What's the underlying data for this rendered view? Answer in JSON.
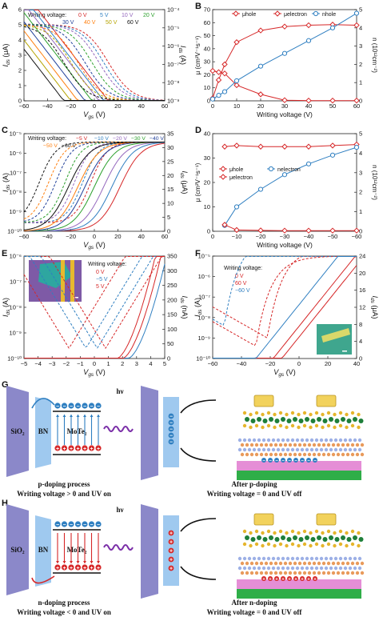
{
  "colors": {
    "red": "#d62728",
    "blue": "#2f7fc1",
    "black": "#111111",
    "sio2": "#8b88c9",
    "bn": "#9fc9ef",
    "gold": "#f2d25c",
    "green": "#2fae48",
    "pink": "#e58ed6",
    "electron": "#2f7fc1",
    "hole": "#d62728",
    "hv": "#7b2fa8"
  },
  "chart_data": [
    {
      "panel": "A",
      "type": "line",
      "xlabel": "Vgs (V)",
      "ylabel_left": "Ids (μA)",
      "ylabel_right": "Ids (A)",
      "xlim": [
        -60,
        60
      ],
      "ylim_left": [
        0,
        6
      ],
      "ylim_right_log": [
        -9,
        -4
      ],
      "x_ticks": [
        "−60",
        "−40",
        "−20",
        "0",
        "20",
        "40",
        "60"
      ],
      "y_ticks_left": [
        "0",
        "1",
        "2",
        "3",
        "4",
        "5",
        "6"
      ],
      "y_ticks_right": [
        "10⁻⁹",
        "10⁻⁸",
        "10⁻⁷",
        "10⁻⁶",
        "10⁻⁵",
        "10⁻⁴"
      ],
      "legend_title": "Writing voltage:",
      "legend": [
        {
          "label": "0 V",
          "color": "#d62728"
        },
        {
          "label": "5 V",
          "color": "#2f7fc1"
        },
        {
          "label": "10 V",
          "color": "#9467bd"
        },
        {
          "label": "20 V",
          "color": "#2ca02c"
        },
        {
          "label": "30 V",
          "color": "#1f3f99"
        },
        {
          "label": "40 V",
          "color": "#ff7f0e"
        },
        {
          "label": "50 V",
          "color": "#b5a300"
        },
        {
          "label": "60 V",
          "color": "#111111"
        }
      ],
      "linear_v0": [
        12,
        8,
        4,
        -2,
        -8,
        -14,
        -20,
        -26
      ]
    },
    {
      "panel": "B",
      "type": "line",
      "xlabel": "Writing voltage (V)",
      "ylabel_left": "μ (cm²V⁻¹s⁻¹)",
      "ylabel_right": "n (10¹²cm⁻²)",
      "xlim": [
        0,
        60
      ],
      "ylim_left": [
        0,
        70
      ],
      "ylim_right": [
        0,
        5
      ],
      "x_ticks": [
        "0",
        "10",
        "20",
        "30",
        "40",
        "50",
        "60"
      ],
      "y_ticks_left": [
        "0",
        "10",
        "20",
        "30",
        "40",
        "50",
        "60",
        "70"
      ],
      "y_ticks_right": [
        "0",
        "1",
        "2",
        "3",
        "4",
        "5"
      ],
      "x": [
        0,
        2.5,
        5,
        10,
        20,
        30,
        40,
        50,
        60
      ],
      "series": [
        {
          "name": "μhole",
          "axis": "left",
          "color": "#d62728",
          "values": [
            2,
            16,
            28,
            45,
            54,
            57,
            58,
            58.5,
            58
          ]
        },
        {
          "name": "μelectron",
          "axis": "left",
          "color": "#d62728",
          "values": [
            23,
            22,
            21,
            12,
            5,
            0.5,
            0.2,
            0.2,
            0.2
          ]
        },
        {
          "name": "nhole",
          "axis": "right",
          "color": "#2f7fc1",
          "values": [
            0.1,
            0.3,
            0.5,
            1.1,
            1.9,
            2.6,
            3.3,
            4.0,
            4.8
          ]
        }
      ],
      "legend": [
        "μhole",
        "μelectron",
        "nhole"
      ]
    },
    {
      "panel": "C",
      "type": "line",
      "xlabel": "Vgs (V)",
      "ylabel_left": "Ids (A)",
      "ylabel_right": "Ids (μA)",
      "xlim": [
        -60,
        60
      ],
      "ylim_right": [
        0,
        35
      ],
      "x_ticks": [
        "−60",
        "−40",
        "−20",
        "0",
        "20",
        "40",
        "60"
      ],
      "y_ticks_right": [
        "0",
        "5",
        "10",
        "15",
        "20",
        "25",
        "30",
        "35"
      ],
      "y_ticks_left": [
        "10⁻¹⁰",
        "10⁻⁹",
        "10⁻⁸",
        "10⁻⁷",
        "10⁻⁶",
        "10⁻⁵"
      ],
      "legend_title": "Writing voltage:",
      "legend": [
        {
          "label": "−5 V",
          "color": "#d62728"
        },
        {
          "label": "−10 V",
          "color": "#2f7fc1"
        },
        {
          "label": "−20 V",
          "color": "#9467bd"
        },
        {
          "label": "−30 V",
          "color": "#2ca02c"
        },
        {
          "label": "−40 V",
          "color": "#1f3f99"
        },
        {
          "label": "−50 V",
          "color": "#ff7f0e"
        },
        {
          "label": "−60 V",
          "color": "#111111"
        }
      ],
      "linear_v0": [
        22,
        15,
        8,
        0,
        -8,
        -14,
        -22
      ]
    },
    {
      "panel": "D",
      "type": "line",
      "xlabel": "Writing voltage (V)",
      "ylabel_left": "μ (cm²V⁻¹s⁻¹)",
      "ylabel_right": "n (10¹²cm⁻²)",
      "xlim": [
        0,
        -60
      ],
      "ylim_left": [
        0,
        45
      ],
      "ylim_right": [
        0,
        5
      ],
      "x_ticks": [
        "0",
        "−10",
        "−20",
        "−30",
        "−40",
        "−50",
        "−60"
      ],
      "y_ticks_left": [
        "0",
        "10",
        "20",
        "30",
        "40"
      ],
      "y_ticks_right": [
        "0",
        "1",
        "2",
        "3",
        "4",
        "5"
      ],
      "x": [
        -5,
        -10,
        -20,
        -30,
        -40,
        -50,
        -60
      ],
      "series": [
        {
          "name": "μhole",
          "axis": "left",
          "color": "#d62728",
          "values": [
            39,
            39.5,
            39,
            39,
            39,
            39.5,
            40
          ]
        },
        {
          "name": "nelectron",
          "axis": "right",
          "color": "#2f7fc1",
          "values": [
            0.3,
            1.25,
            2.15,
            2.9,
            3.45,
            3.9,
            4.3
          ]
        },
        {
          "name": "μelectron",
          "axis": "left",
          "color": "#d62728",
          "values": [
            3,
            0.6,
            0.4,
            0.3,
            0.3,
            0.3,
            0.3
          ]
        }
      ],
      "legend": [
        "μhole",
        "nelectron",
        "μelectron"
      ]
    },
    {
      "panel": "E",
      "type": "line",
      "xlabel": "Vgs (V)",
      "ylabel_left": "Ids (A)",
      "ylabel_right": "Ids (nA)",
      "xlim": [
        -5,
        5
      ],
      "ylim_right": [
        0,
        350
      ],
      "x_ticks": [
        "−5",
        "−4",
        "−3",
        "−2",
        "−1",
        "0",
        "1",
        "2",
        "3",
        "4",
        "5"
      ],
      "y_ticks_right": [
        "0",
        "50",
        "100",
        "150",
        "200",
        "250",
        "300",
        "350"
      ],
      "y_ticks_left": [
        "10⁻¹⁰",
        "10⁻⁹",
        "10⁻⁸",
        "10⁻⁷",
        "10⁻⁶"
      ],
      "legend_title": "Writing voltage:",
      "legend": [
        {
          "label": "0 V",
          "color": "#d62728"
        },
        {
          "label": "−5 V",
          "color": "#2f7fc1"
        },
        {
          "label": "5 V",
          "color": "#d62728"
        },
        {
          "label": "−5 V",
          "color": "#2f7fc1"
        }
      ]
    },
    {
      "panel": "F",
      "type": "line",
      "xlabel": "Vgs (V)",
      "ylabel_left": "Ids (A)",
      "ylabel_right": "Ids (μA)",
      "xlim": [
        -60,
        40
      ],
      "ylim_right": [
        0,
        24
      ],
      "x_ticks": [
        "−60",
        "−40",
        "−20",
        "0",
        "20",
        "40"
      ],
      "y_ticks_right": [
        "0",
        "4",
        "8",
        "12",
        "16",
        "20",
        "24"
      ],
      "y_ticks_left": [
        "10⁻¹⁰",
        "10⁻⁹",
        "10⁻⁸",
        "10⁻⁷",
        "10⁻⁶",
        "10⁻⁵"
      ],
      "legend_title": "Writing voltage:",
      "legend": [
        {
          "label": "0 V",
          "color": "#d62728"
        },
        {
          "label": "60 V",
          "color": "#d62728"
        },
        {
          "label": "−60 V",
          "color": "#2f7fc1"
        }
      ]
    }
  ],
  "panels": {
    "G": {
      "letter": "G",
      "sio2": "SiO₂",
      "bn": "BN",
      "mote2": "MoTe₂",
      "hv": "hν",
      "caption1": "p-doping process",
      "caption2": "Writing voltage > 0 and UV on",
      "after1": "After p-doping",
      "after2": "Writing voltage = 0 and UV off"
    },
    "H": {
      "letter": "H",
      "sio2": "SiO₂",
      "bn": "BN",
      "mote2": "MoTe₂",
      "hv": "hν",
      "caption1": "n-doping process",
      "caption2": "Writing voltage < 0 and UV on",
      "after1": "After n-doping",
      "after2": "Writing voltage = 0 and UV off"
    }
  }
}
